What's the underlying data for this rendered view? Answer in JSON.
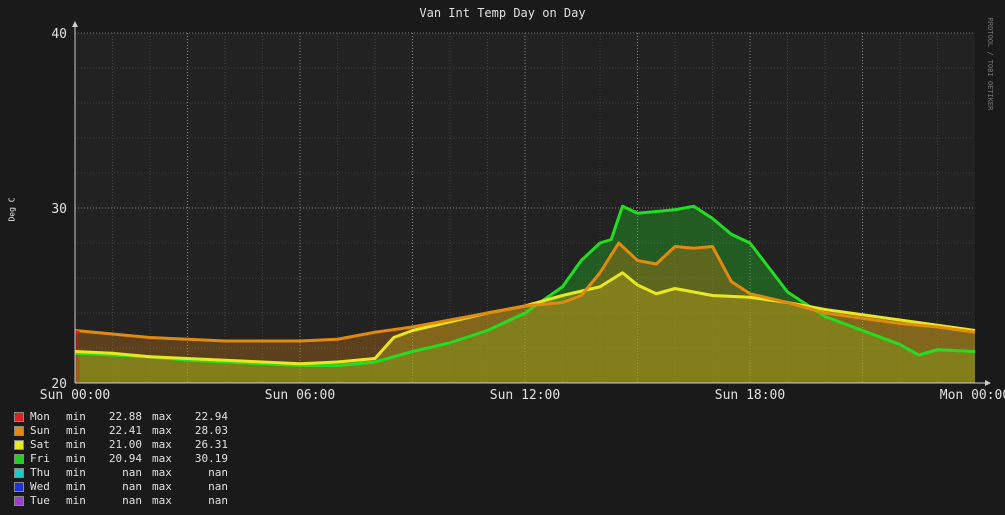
{
  "chart_data": {
    "type": "line",
    "title": "Van Int Temp Day on Day",
    "ylabel": "Deg C",
    "watermark": "RRDTOOL / TOBI OETIKER",
    "ylim": [
      20,
      40
    ],
    "yticks": [
      "20",
      "30",
      "40"
    ],
    "xlim": [
      0,
      24
    ],
    "xticks": [
      {
        "value": 0,
        "label": "Sun 00:00"
      },
      {
        "value": 6,
        "label": "Sun 06:00"
      },
      {
        "value": 12,
        "label": "Sun 12:00"
      },
      {
        "value": 18,
        "label": "Sun 18:00"
      },
      {
        "value": 24,
        "label": "Mon 00:00"
      }
    ],
    "grid": true,
    "series": [
      {
        "name": "Fri",
        "color": "#22dd22",
        "fill": "rgba(34,200,34,0.35)",
        "x": [
          0,
          1,
          2,
          3,
          4,
          5,
          6,
          7,
          8,
          8.5,
          9,
          10,
          11,
          12,
          13,
          13.5,
          14,
          14.3,
          14.6,
          15,
          15.5,
          16,
          16.5,
          17,
          17.5,
          18,
          18.5,
          19,
          20,
          21,
          22,
          22.5,
          23,
          24
        ],
        "values": [
          21.7,
          21.6,
          21.5,
          21.3,
          21.2,
          21.1,
          21.0,
          21.0,
          21.2,
          21.5,
          21.8,
          22.3,
          23.0,
          24.0,
          25.5,
          27.0,
          28.0,
          28.2,
          30.1,
          29.7,
          29.8,
          29.9,
          30.1,
          29.4,
          28.5,
          28.0,
          26.6,
          25.2,
          23.8,
          23.0,
          22.2,
          21.6,
          21.9,
          21.8
        ]
      },
      {
        "name": "Sat",
        "color": "#e8e820",
        "fill": "rgba(200,200,30,0.35)",
        "x": [
          0,
          1,
          2,
          3,
          4,
          5,
          6,
          7,
          8,
          8.5,
          9,
          10,
          11,
          12,
          13,
          14,
          14.6,
          15,
          15.5,
          16,
          17,
          18,
          19,
          20,
          21,
          22,
          23,
          24
        ],
        "values": [
          21.8,
          21.7,
          21.5,
          21.4,
          21.3,
          21.2,
          21.1,
          21.2,
          21.4,
          22.6,
          23.0,
          23.5,
          24.0,
          24.4,
          25.0,
          25.5,
          26.3,
          25.6,
          25.1,
          25.4,
          25.0,
          24.9,
          24.6,
          24.2,
          23.9,
          23.6,
          23.3,
          23.0
        ]
      },
      {
        "name": "Sun",
        "color": "#e08a10",
        "fill": "rgba(200,120,20,0.35)",
        "x": [
          0,
          1,
          2,
          3,
          4,
          5,
          6,
          7,
          8,
          9,
          10,
          11,
          12,
          13,
          13.5,
          14,
          14.5,
          15,
          15.5,
          16,
          16.5,
          17,
          17.5,
          18,
          19,
          20,
          21,
          22,
          23,
          24
        ],
        "values": [
          23.0,
          22.8,
          22.6,
          22.5,
          22.4,
          22.4,
          22.4,
          22.5,
          22.9,
          23.2,
          23.6,
          24.0,
          24.4,
          24.6,
          25.0,
          26.3,
          28.0,
          27.0,
          26.8,
          27.8,
          27.7,
          27.8,
          25.8,
          25.1,
          24.6,
          24.0,
          23.7,
          23.4,
          23.2,
          22.9
        ]
      },
      {
        "name": "Mon",
        "color": "#dd2020",
        "fill": "rgba(200,30,30,0.35)",
        "x": [
          0,
          0.12
        ],
        "values": [
          22.94,
          22.88
        ]
      }
    ],
    "legend": [
      {
        "name": "Mon",
        "min_label": "min",
        "min": "22.88",
        "max_label": "max",
        "max": "22.94",
        "color": "#dd2020"
      },
      {
        "name": "Sun",
        "min_label": "min",
        "min": "22.41",
        "max_label": "max",
        "max": "28.03",
        "color": "#e08a10"
      },
      {
        "name": "Sat",
        "min_label": "min",
        "min": "21.00",
        "max_label": "max",
        "max": "26.31",
        "color": "#e8e820"
      },
      {
        "name": "Fri",
        "min_label": "min",
        "min": "20.94",
        "max_label": "max",
        "max": "30.19",
        "color": "#22cc22"
      },
      {
        "name": "Thu",
        "min_label": "min",
        "min": "nan",
        "max_label": "max",
        "max": "nan",
        "color": "#20c8c8"
      },
      {
        "name": "Wed",
        "min_label": "min",
        "min": "nan",
        "max_label": "max",
        "max": "nan",
        "color": "#2030dd"
      },
      {
        "name": "Tue",
        "min_label": "min",
        "min": "nan",
        "max_label": "max",
        "max": "nan",
        "color": "#9a40c8"
      }
    ]
  }
}
